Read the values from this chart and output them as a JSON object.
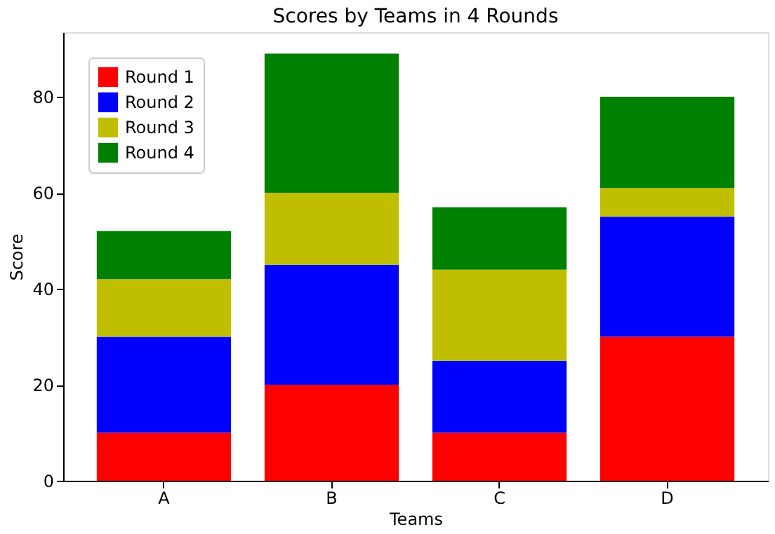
{
  "chart_data": {
    "type": "bar",
    "title": "Scores by Teams in 4 Rounds",
    "xlabel": "Teams",
    "ylabel": "Score",
    "categories": [
      "A",
      "B",
      "C",
      "D"
    ],
    "stacked": true,
    "ylim": [
      0,
      93.45
    ],
    "yticks": [
      0,
      20,
      40,
      60,
      80
    ],
    "grid": false,
    "legend": "top left",
    "series": [
      {
        "name": "Round 1",
        "color": "#ff0000",
        "values": [
          10,
          20,
          10,
          30
        ]
      },
      {
        "name": "Round 2",
        "color": "#0000ff",
        "values": [
          20,
          25,
          15,
          25
        ]
      },
      {
        "name": "Round 3",
        "color": "#bfbf00",
        "values": [
          12,
          15,
          19,
          6
        ]
      },
      {
        "name": "Round 4",
        "color": "#008000",
        "values": [
          10,
          29,
          13,
          19
        ]
      }
    ]
  }
}
